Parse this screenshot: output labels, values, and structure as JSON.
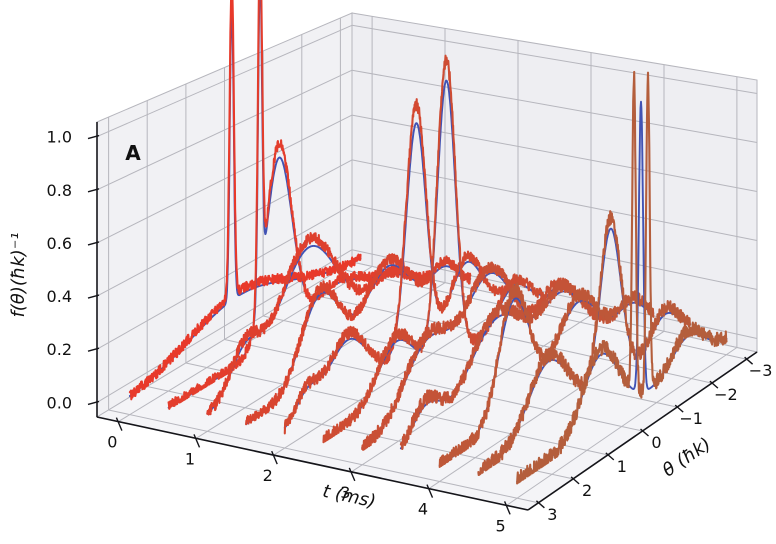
{
  "chart_data": {
    "type": "line",
    "subtype": "3d-waterfall",
    "panel_label": "A",
    "xlabel": "t (ms)",
    "ylabel": "θ (ħk)",
    "zlabel": "f(θ)(ħk)⁻¹",
    "x_ticks": [
      "0",
      "1",
      "2",
      "3",
      "4",
      "5"
    ],
    "y_ticks": [
      "3",
      "2",
      "1",
      "0",
      "−1",
      "−2",
      "−3"
    ],
    "z_ticks": [
      "0.0",
      "0.2",
      "0.4",
      "0.6",
      "0.8",
      "1.0"
    ],
    "x_range": [
      0,
      5
    ],
    "y_range": [
      -3,
      3
    ],
    "z_range": [
      0,
      1
    ],
    "grid": true,
    "legend": "none",
    "colors": {
      "fit_line": "#4153b4",
      "data_line_early": "#e8392a",
      "data_line_late": "#b45e3c",
      "grid_line": "#b6b6bd",
      "pane_floor": "#f4f4f7",
      "pane_left": "#f1f1f4",
      "pane_right": "#eeeef2",
      "axis_line": "#15151a",
      "text": "#111111"
    },
    "slices_note": "each slice: momentum distribution f(theta) at time t; components are [amplitude, center, sigma] gaussians; 'data' = noisy experimental red curve, 'fit' = smooth blue theory curve",
    "slices": [
      {
        "t": 0.0,
        "data": [
          [
            1.28,
            0.35,
            0.055
          ],
          [
            0.17,
            0.1,
            1.25
          ]
        ],
        "fit": [
          [
            1.2,
            0.35,
            0.05
          ],
          [
            0.155,
            0.1,
            1.3
          ]
        ],
        "noise": 0.02
      },
      {
        "t": 0.5,
        "data": [
          [
            1.35,
            0.6,
            0.055
          ],
          [
            0.78,
            0.1,
            0.34
          ],
          [
            0.1,
            -1.4,
            0.6
          ]
        ],
        "fit": [
          [
            1.26,
            0.6,
            0.05
          ],
          [
            0.73,
            0.1,
            0.35
          ],
          [
            0.09,
            -1.4,
            0.6
          ]
        ],
        "noise": 0.02
      },
      {
        "t": 1.0,
        "data": [
          [
            0.45,
            0.3,
            0.75
          ],
          [
            0.17,
            2.0,
            0.38
          ],
          [
            0.12,
            -1.8,
            0.5
          ]
        ],
        "fit": [
          [
            0.42,
            0.3,
            0.78
          ],
          [
            0.15,
            2.0,
            0.4
          ],
          [
            0.11,
            -1.8,
            0.52
          ]
        ],
        "noise": 0.022
      },
      {
        "t": 1.5,
        "data": [
          [
            0.34,
            1.0,
            0.5
          ],
          [
            0.3,
            -0.8,
            0.6
          ],
          [
            0.15,
            -2.3,
            0.35
          ]
        ],
        "fit": [
          [
            0.32,
            1.0,
            0.52
          ],
          [
            0.28,
            -0.8,
            0.62
          ],
          [
            0.13,
            -2.3,
            0.38
          ]
        ],
        "noise": 0.022
      },
      {
        "t": 2.0,
        "data": [
          [
            0.97,
            -0.55,
            0.27
          ],
          [
            0.25,
            -1.9,
            0.4
          ],
          [
            0.22,
            1.3,
            0.5
          ],
          [
            0.1,
            2.4,
            0.3
          ]
        ],
        "fit": [
          [
            0.9,
            -0.55,
            0.27
          ],
          [
            0.23,
            -1.9,
            0.42
          ],
          [
            0.2,
            1.3,
            0.52
          ],
          [
            0.09,
            2.4,
            0.32
          ]
        ],
        "noise": 0.023
      },
      {
        "t": 2.5,
        "data": [
          [
            1.18,
            -0.35,
            0.25
          ],
          [
            0.22,
            1.0,
            0.5
          ],
          [
            0.16,
            -2.2,
            0.4
          ]
        ],
        "fit": [
          [
            1.1,
            -0.35,
            0.25
          ],
          [
            0.2,
            1.0,
            0.52
          ],
          [
            0.14,
            -2.2,
            0.42
          ]
        ],
        "noise": 0.023
      },
      {
        "t": 3.0,
        "data": [
          [
            0.38,
            -0.5,
            0.65
          ],
          [
            0.26,
            1.2,
            0.6
          ],
          [
            0.16,
            -2.35,
            0.4
          ]
        ],
        "fit": [
          [
            0.36,
            -0.5,
            0.67
          ],
          [
            0.24,
            1.2,
            0.62
          ],
          [
            0.14,
            -2.35,
            0.42
          ]
        ],
        "noise": 0.024
      },
      {
        "t": 3.5,
        "data": [
          [
            0.31,
            0.3,
            0.75
          ],
          [
            0.24,
            -1.5,
            0.55
          ],
          [
            0.14,
            2.3,
            0.4
          ]
        ],
        "fit": [
          [
            0.29,
            0.3,
            0.78
          ],
          [
            0.22,
            -1.5,
            0.57
          ],
          [
            0.12,
            2.3,
            0.42
          ]
        ],
        "noise": 0.025
      },
      {
        "t": 4.0,
        "data": [
          [
            0.46,
            0.9,
            0.42
          ],
          [
            0.3,
            -0.9,
            0.6
          ],
          [
            0.15,
            -2.4,
            0.4
          ]
        ],
        "fit": [
          [
            0.43,
            0.9,
            0.44
          ],
          [
            0.28,
            -0.9,
            0.62
          ],
          [
            0.13,
            -2.4,
            0.42
          ]
        ],
        "noise": 0.026
      },
      {
        "t": 4.5,
        "data": [
          [
            0.64,
            -0.75,
            0.3
          ],
          [
            0.26,
            1.0,
            0.55
          ],
          [
            0.16,
            -2.3,
            0.4
          ]
        ],
        "fit": [
          [
            0.6,
            -0.75,
            0.3
          ],
          [
            0.24,
            1.0,
            0.57
          ],
          [
            0.14,
            -2.3,
            0.42
          ]
        ],
        "noise": 0.027
      },
      {
        "t": 5.0,
        "data": [
          [
            1.18,
            -0.35,
            0.05
          ],
          [
            1.19,
            -0.75,
            0.05
          ],
          [
            0.28,
            0.6,
            0.5
          ],
          [
            0.14,
            -1.9,
            0.45
          ]
        ],
        "fit": [
          [
            1.1,
            -0.55,
            0.06
          ],
          [
            0.26,
            0.6,
            0.52
          ],
          [
            0.12,
            -1.9,
            0.47
          ]
        ],
        "noise": 0.028
      }
    ]
  }
}
